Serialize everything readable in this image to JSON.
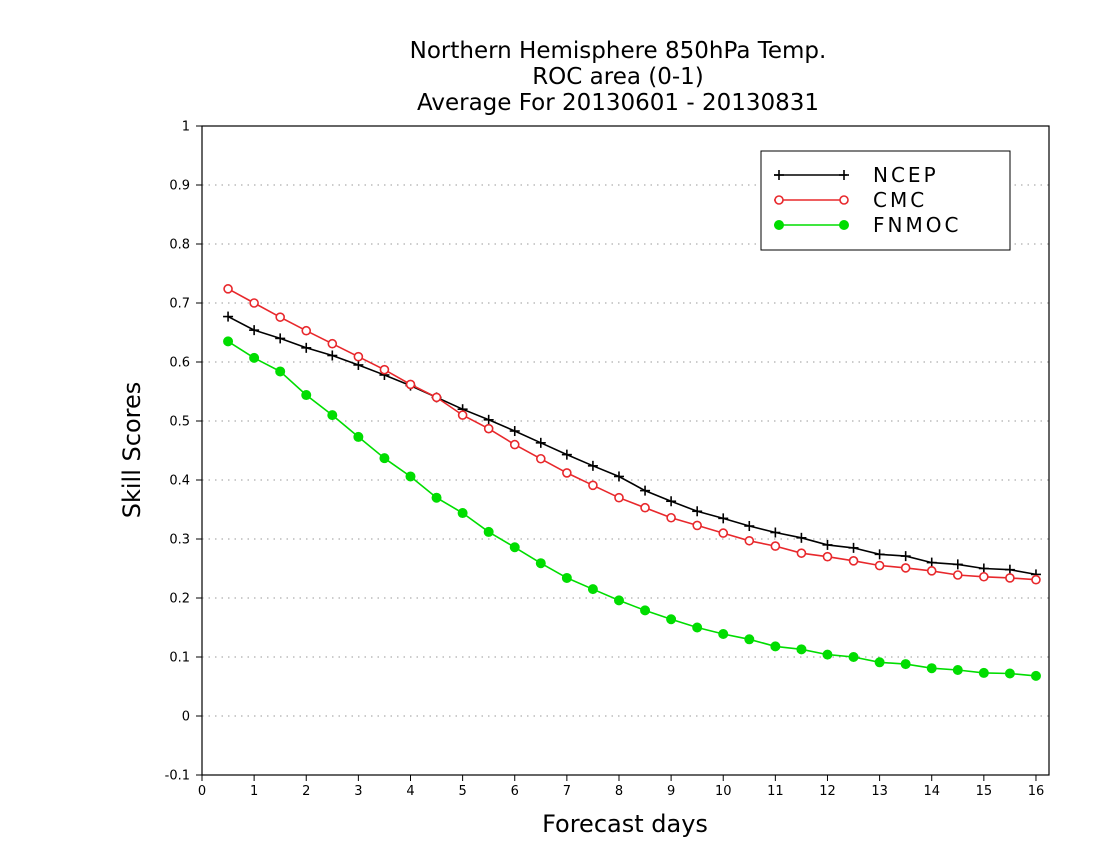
{
  "chart_data": {
    "type": "line",
    "title_lines": [
      "Northern Hemisphere 850hPa Temp.",
      "ROC area (0-1)",
      "Average For 20130601 - 20130831"
    ],
    "xlabel": "Forecast days",
    "ylabel": "Skill Scores",
    "xlim": [
      0,
      16.25
    ],
    "ylim": [
      -0.1,
      1
    ],
    "x_ticks": [
      "0",
      "1",
      "2",
      "3",
      "4",
      "5",
      "6",
      "7",
      "8",
      "9",
      "10",
      "11",
      "12",
      "13",
      "14",
      "15",
      "16"
    ],
    "y_ticks": [
      "-0.1",
      "0",
      "0.1",
      "0.2",
      "0.3",
      "0.4",
      "0.5",
      "0.6",
      "0.7",
      "0.8",
      "0.9",
      "1"
    ],
    "grid": "horizontal-dotted",
    "legend_position": "top-right",
    "x": [
      0.5,
      1,
      1.5,
      2,
      2.5,
      3,
      3.5,
      4,
      4.5,
      5,
      5.5,
      6,
      6.5,
      7,
      7.5,
      8,
      8.5,
      9,
      9.5,
      10,
      10.5,
      11,
      11.5,
      12,
      12.5,
      13,
      13.5,
      14,
      14.5,
      15,
      15.5,
      16
    ],
    "series": [
      {
        "name": "NCEP",
        "color": "#000000",
        "marker": "plus",
        "values": [
          0.677,
          0.654,
          0.64,
          0.624,
          0.611,
          0.595,
          0.578,
          0.56,
          0.54,
          0.52,
          0.502,
          0.483,
          0.463,
          0.443,
          0.424,
          0.406,
          0.382,
          0.364,
          0.347,
          0.335,
          0.322,
          0.311,
          0.302,
          0.29,
          0.285,
          0.274,
          0.271,
          0.26,
          0.257,
          0.25,
          0.248,
          0.24
        ]
      },
      {
        "name": "CMC",
        "color": "#e8282c",
        "marker": "open-circle",
        "values": [
          0.724,
          0.7,
          0.676,
          0.653,
          0.631,
          0.609,
          0.587,
          0.562,
          0.54,
          0.51,
          0.487,
          0.46,
          0.436,
          0.412,
          0.391,
          0.37,
          0.353,
          0.336,
          0.323,
          0.31,
          0.297,
          0.288,
          0.276,
          0.27,
          0.263,
          0.255,
          0.251,
          0.246,
          0.239,
          0.236,
          0.234,
          0.231
        ]
      },
      {
        "name": "FNMOC",
        "color": "#00dd00",
        "marker": "filled-circle",
        "values": [
          0.635,
          0.607,
          0.584,
          0.544,
          0.51,
          0.473,
          0.437,
          0.406,
          0.37,
          0.344,
          0.312,
          0.286,
          0.259,
          0.234,
          0.215,
          0.196,
          0.179,
          0.164,
          0.15,
          0.139,
          0.13,
          0.118,
          0.113,
          0.104,
          0.1,
          0.091,
          0.088,
          0.081,
          0.078,
          0.073,
          0.072,
          0.068
        ]
      }
    ]
  }
}
